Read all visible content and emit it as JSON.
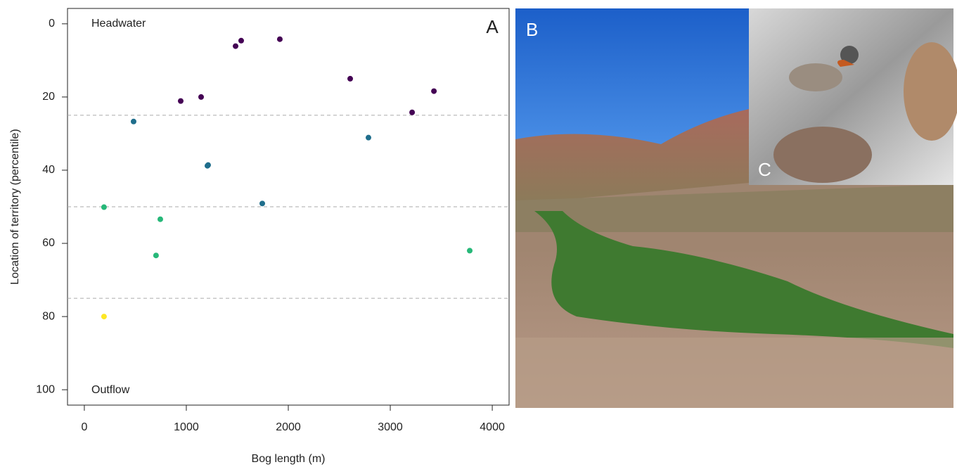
{
  "chart_data": {
    "type": "scatter",
    "xlabel": "Bog length (m)",
    "ylabel": "Location of territory (percentile)",
    "xlim": [
      -165,
      4165
    ],
    "xticks": [
      0,
      1000,
      2000,
      3000,
      4000
    ],
    "ylim": [
      104.2,
      -4.2
    ],
    "yticks": [
      0,
      20,
      40,
      60,
      80,
      100
    ],
    "hlines": [
      25,
      50,
      75
    ],
    "annotations": {
      "top": "Headwater",
      "bottom": "Outflow",
      "panel": "A"
    },
    "series": [
      {
        "color": "#440154",
        "x": [
          1483,
          1538,
          1917,
          2607,
          3428,
          3214,
          1145,
          945
        ],
        "values": [
          6.1,
          4.6,
          4.2,
          15,
          18.4,
          24.2,
          20,
          21.1
        ]
      },
      {
        "color": "#1f6e8c",
        "x": [
          483,
          2786,
          1207,
          1214,
          1745
        ],
        "values": [
          26.7,
          31.1,
          38.8,
          38.6,
          49.1
        ]
      },
      {
        "color": "#27b879",
        "x": [
          193,
          745,
          703,
          3779
        ],
        "values": [
          50.1,
          53.4,
          63.3,
          62
        ]
      },
      {
        "color": "#fde725",
        "x": [
          193
        ],
        "values": [
          80
        ]
      }
    ]
  },
  "photos": {
    "landscape": "B",
    "inset": "C"
  }
}
